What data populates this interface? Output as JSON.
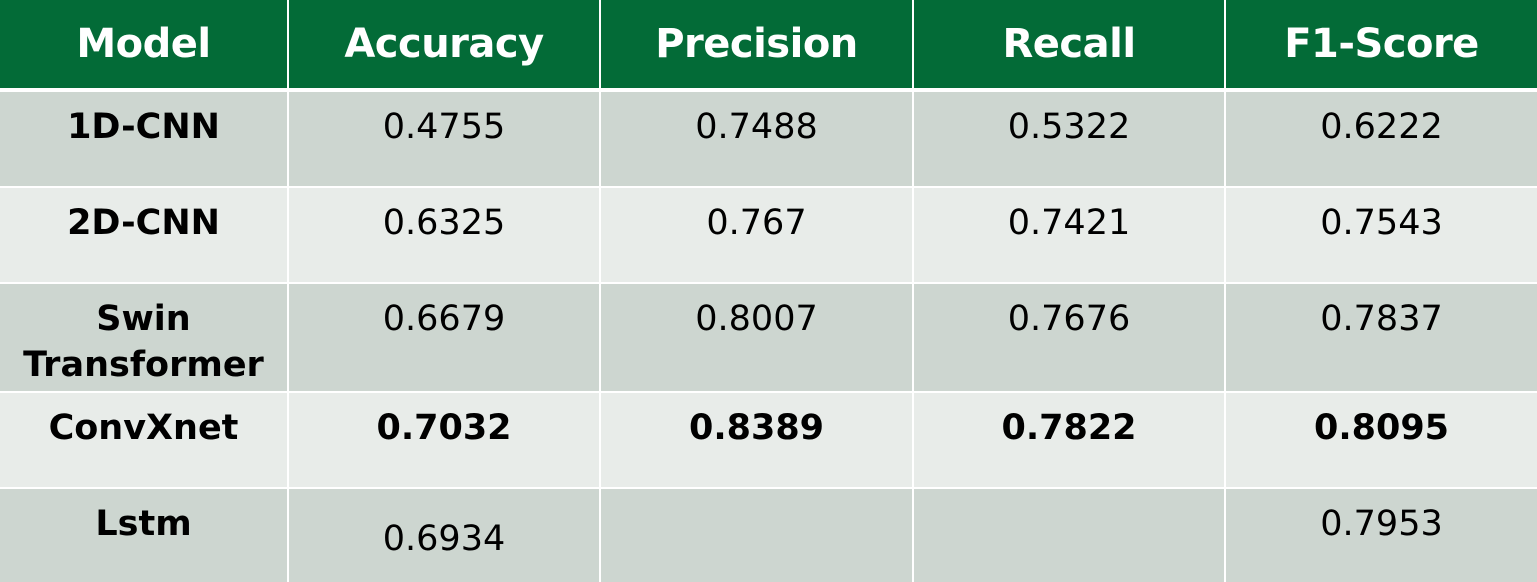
{
  "table": {
    "headers": [
      "Model",
      "Accuracy",
      "Precision",
      "Recall",
      "F1-Score"
    ],
    "rows": [
      {
        "model": "1D-CNN",
        "accuracy": "0.4755",
        "precision": "0.7488",
        "recall": "0.5322",
        "f1": "0.6222"
      },
      {
        "model": "2D-CNN",
        "accuracy": "0.6325",
        "precision": "0.767",
        "recall": "0.7421",
        "f1": "0.7543"
      },
      {
        "model": "Swin Transformer",
        "accuracy": "0.6679",
        "precision": "0.8007",
        "recall": "0.7676",
        "f1": "0.7837"
      },
      {
        "model": "ConvXnet",
        "accuracy": "0.7032",
        "precision": "0.8389",
        "recall": "0.7822",
        "f1": "0.8095"
      },
      {
        "model": "Lstm",
        "accuracy": "0.6934",
        "precision": "",
        "recall": "",
        "f1": "0.7953"
      }
    ]
  },
  "colors": {
    "header_bg": "#036b37",
    "header_text": "#ffffff",
    "row_dark": "#cdd6d0",
    "row_light": "#e8ece9"
  }
}
